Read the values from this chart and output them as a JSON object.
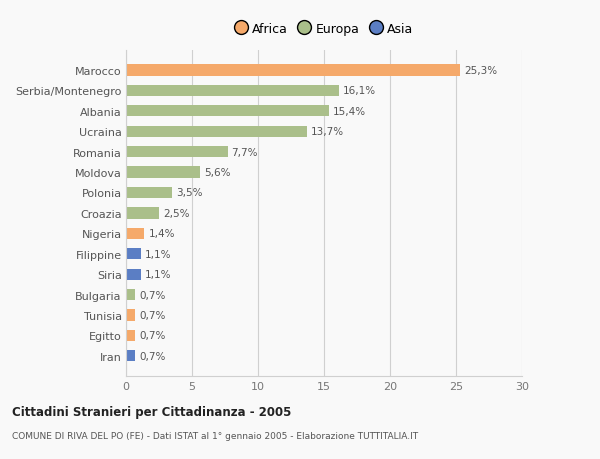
{
  "countries": [
    "Marocco",
    "Serbia/Montenegro",
    "Albania",
    "Ucraina",
    "Romania",
    "Moldova",
    "Polonia",
    "Croazia",
    "Nigeria",
    "Filippine",
    "Siria",
    "Bulgaria",
    "Tunisia",
    "Egitto",
    "Iran"
  ],
  "values": [
    25.3,
    16.1,
    15.4,
    13.7,
    7.7,
    5.6,
    3.5,
    2.5,
    1.4,
    1.1,
    1.1,
    0.7,
    0.7,
    0.7,
    0.7
  ],
  "labels": [
    "25,3%",
    "16,1%",
    "15,4%",
    "13,7%",
    "7,7%",
    "5,6%",
    "3,5%",
    "2,5%",
    "1,4%",
    "1,1%",
    "1,1%",
    "0,7%",
    "0,7%",
    "0,7%",
    "0,7%"
  ],
  "continents": [
    "Africa",
    "Europa",
    "Europa",
    "Europa",
    "Europa",
    "Europa",
    "Europa",
    "Europa",
    "Africa",
    "Asia",
    "Asia",
    "Europa",
    "Africa",
    "Africa",
    "Asia"
  ],
  "colors": {
    "Africa": "#F5A96A",
    "Europa": "#AABF8A",
    "Asia": "#5B7EC4"
  },
  "legend_labels": [
    "Africa",
    "Europa",
    "Asia"
  ],
  "legend_colors": [
    "#F5A96A",
    "#AABF8A",
    "#5B7EC4"
  ],
  "xlim": [
    0,
    30
  ],
  "xticks": [
    0,
    5,
    10,
    15,
    20,
    25,
    30
  ],
  "title_bold": "Cittadini Stranieri per Cittadinanza - 2005",
  "subtitle": "COMUNE DI RIVA DEL PO (FE) - Dati ISTAT al 1° gennaio 2005 - Elaborazione TUTTITALIA.IT",
  "background_color": "#f9f9f9",
  "grid_color": "#d0d0d0",
  "bar_height": 0.55,
  "label_fontsize": 7.5,
  "ytick_fontsize": 8.0,
  "xtick_fontsize": 8.0
}
